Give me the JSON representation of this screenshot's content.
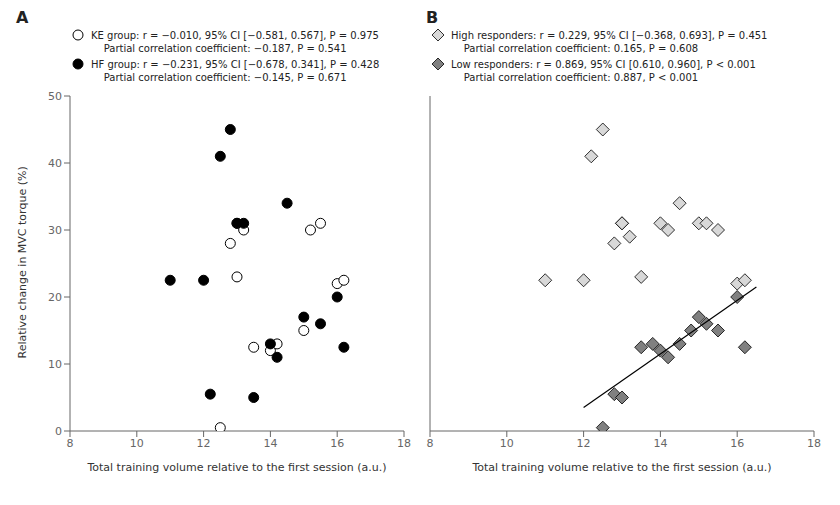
{
  "chart_data": [
    {
      "type": "scatter",
      "title": "A",
      "xlabel": "Total training volume relative to the first session (a.u.)",
      "ylabel": "Relative change in MVC torque (%)",
      "xlim": [
        8,
        18
      ],
      "ylim": [
        0,
        50
      ],
      "xticks": [
        8,
        10,
        12,
        14,
        16,
        18
      ],
      "yticks": [
        0,
        10,
        20,
        30,
        40,
        50
      ],
      "grid": false,
      "series": [
        {
          "name": "KE group: r = −0.010, 95% CI [−0.581, 0.567], P = 0.975",
          "color": "#ffffff",
          "marker": "circle",
          "x": [
            12.5,
            12.8,
            13.0,
            13.0,
            13.2,
            13.5,
            14.0,
            14.2,
            15.0,
            15.2,
            15.5,
            16.0,
            16.2
          ],
          "values": [
            0.5,
            28.0,
            31.0,
            23.0,
            30.0,
            12.5,
            12.0,
            13.0,
            15.0,
            30.0,
            31.0,
            22.0,
            22.5
          ]
        },
        {
          "name": "HF group: r = −0.231, 95% CI [−0.678, 0.341], P = 0.428",
          "color": "#000000",
          "marker": "circle",
          "x": [
            11.0,
            12.0,
            12.2,
            12.5,
            12.8,
            13.0,
            13.2,
            13.5,
            14.0,
            14.2,
            14.5,
            15.0,
            15.5,
            16.0,
            16.2
          ],
          "values": [
            22.5,
            22.5,
            5.5,
            41.0,
            45.0,
            31.0,
            31.0,
            5.0,
            13.0,
            11.0,
            34.0,
            17.0,
            16.0,
            20.0,
            12.5
          ]
        }
      ],
      "annotations": [
        "    Partial correlation coefficient: −0.187, P = 0.541",
        "    Partial correlation coefficient: −0.145, P = 0.671"
      ]
    },
    {
      "type": "scatter",
      "title": "B",
      "xlabel": "Total training volume relative to the first session (a.u.)",
      "xlim": [
        8,
        18
      ],
      "ylim": [
        0,
        50
      ],
      "xticks": [
        8,
        10,
        12,
        14,
        16,
        18
      ],
      "yticks": [
        0,
        10,
        20,
        30,
        40,
        50
      ],
      "grid": false,
      "tick_labels": "x",
      "series": [
        {
          "name": "High responders: r = 0.229, 95% CI [−0.368, 0.693], P = 0.451",
          "color": "#d8d8d8",
          "marker": "diamond",
          "x": [
            11.0,
            12.0,
            12.2,
            12.5,
            12.8,
            13.0,
            13.0,
            13.2,
            13.5,
            14.0,
            14.2,
            14.5,
            15.0,
            15.2,
            15.5,
            16.0,
            16.2
          ],
          "values": [
            22.5,
            22.5,
            41.0,
            45.0,
            28.0,
            31.0,
            31.0,
            29.0,
            23.0,
            31.0,
            30.0,
            34.0,
            31.0,
            31.0,
            30.0,
            22.0,
            22.5
          ]
        },
        {
          "name": "Low responders: r = 0.869, 95% CI [0.610, 0.960], P < 0.001",
          "color": "#808080",
          "marker": "diamond",
          "x": [
            12.5,
            12.8,
            13.0,
            13.5,
            13.8,
            14.0,
            14.2,
            14.5,
            14.8,
            15.0,
            15.2,
            15.5,
            16.0,
            16.2
          ],
          "values": [
            0.5,
            5.5,
            5.0,
            12.5,
            13.0,
            12.0,
            11.0,
            13.0,
            15.0,
            17.0,
            16.0,
            15.0,
            20.0,
            12.5
          ]
        },
        {
          "type": "line",
          "color": "#000000",
          "x": [
            12.0,
            16.5
          ],
          "values": [
            3.5,
            21.5
          ]
        }
      ],
      "annotations": [
        "    Partial correlation coefficient: 0.165, P = 0.608",
        "    Partial correlation coefficient: 0.887, P < 0.001"
      ]
    }
  ]
}
